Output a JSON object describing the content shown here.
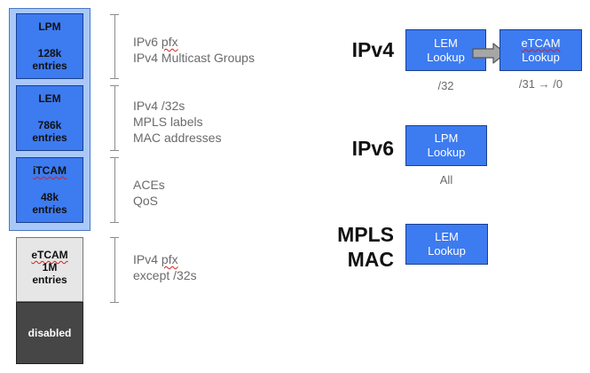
{
  "memory": {
    "lpm": {
      "name": "LPM",
      "size": "128k",
      "unit": "entries"
    },
    "lem": {
      "name": "LEM",
      "size": "786k",
      "unit": "entries"
    },
    "itcam": {
      "name": "iTCAM",
      "size": "48k",
      "unit": "entries"
    },
    "etcam": {
      "name": "eTCAM",
      "size": "1M",
      "unit": "entries"
    },
    "disabled": {
      "label": "disabled"
    }
  },
  "descriptions": {
    "lpm": [
      "IPv6 pfx",
      "IPv4 Multicast Groups"
    ],
    "lem": [
      "IPv4 /32s",
      "MPLS labels",
      "MAC addresses"
    ],
    "itcam": [
      "ACEs",
      "QoS"
    ],
    "etcam": [
      "IPv4 pfx",
      "except /32s"
    ]
  },
  "protocols": {
    "ipv4": {
      "label": "IPv4",
      "lookups": [
        {
          "line1": "LEM",
          "line2": "Lookup",
          "caption": "/32"
        },
        {
          "line1": "eTCAM",
          "line2": "Lookup",
          "caption": "/31 → /0"
        }
      ]
    },
    "ipv6": {
      "label": "IPv6",
      "lookups": [
        {
          "line1": "LPM",
          "line2": "Lookup",
          "caption": "All"
        }
      ]
    },
    "mpls_mac": {
      "label_line1": "MPLS",
      "label_line2": "MAC",
      "lookups": [
        {
          "line1": "LEM",
          "line2": "Lookup"
        }
      ]
    }
  },
  "colors": {
    "block_blue": "#3d7bf0",
    "frame_blue": "#a9c8f7",
    "etcam_grey": "#e6e6e6",
    "disabled_grey": "#464646",
    "arrow_grey": "#a6a6a6"
  }
}
